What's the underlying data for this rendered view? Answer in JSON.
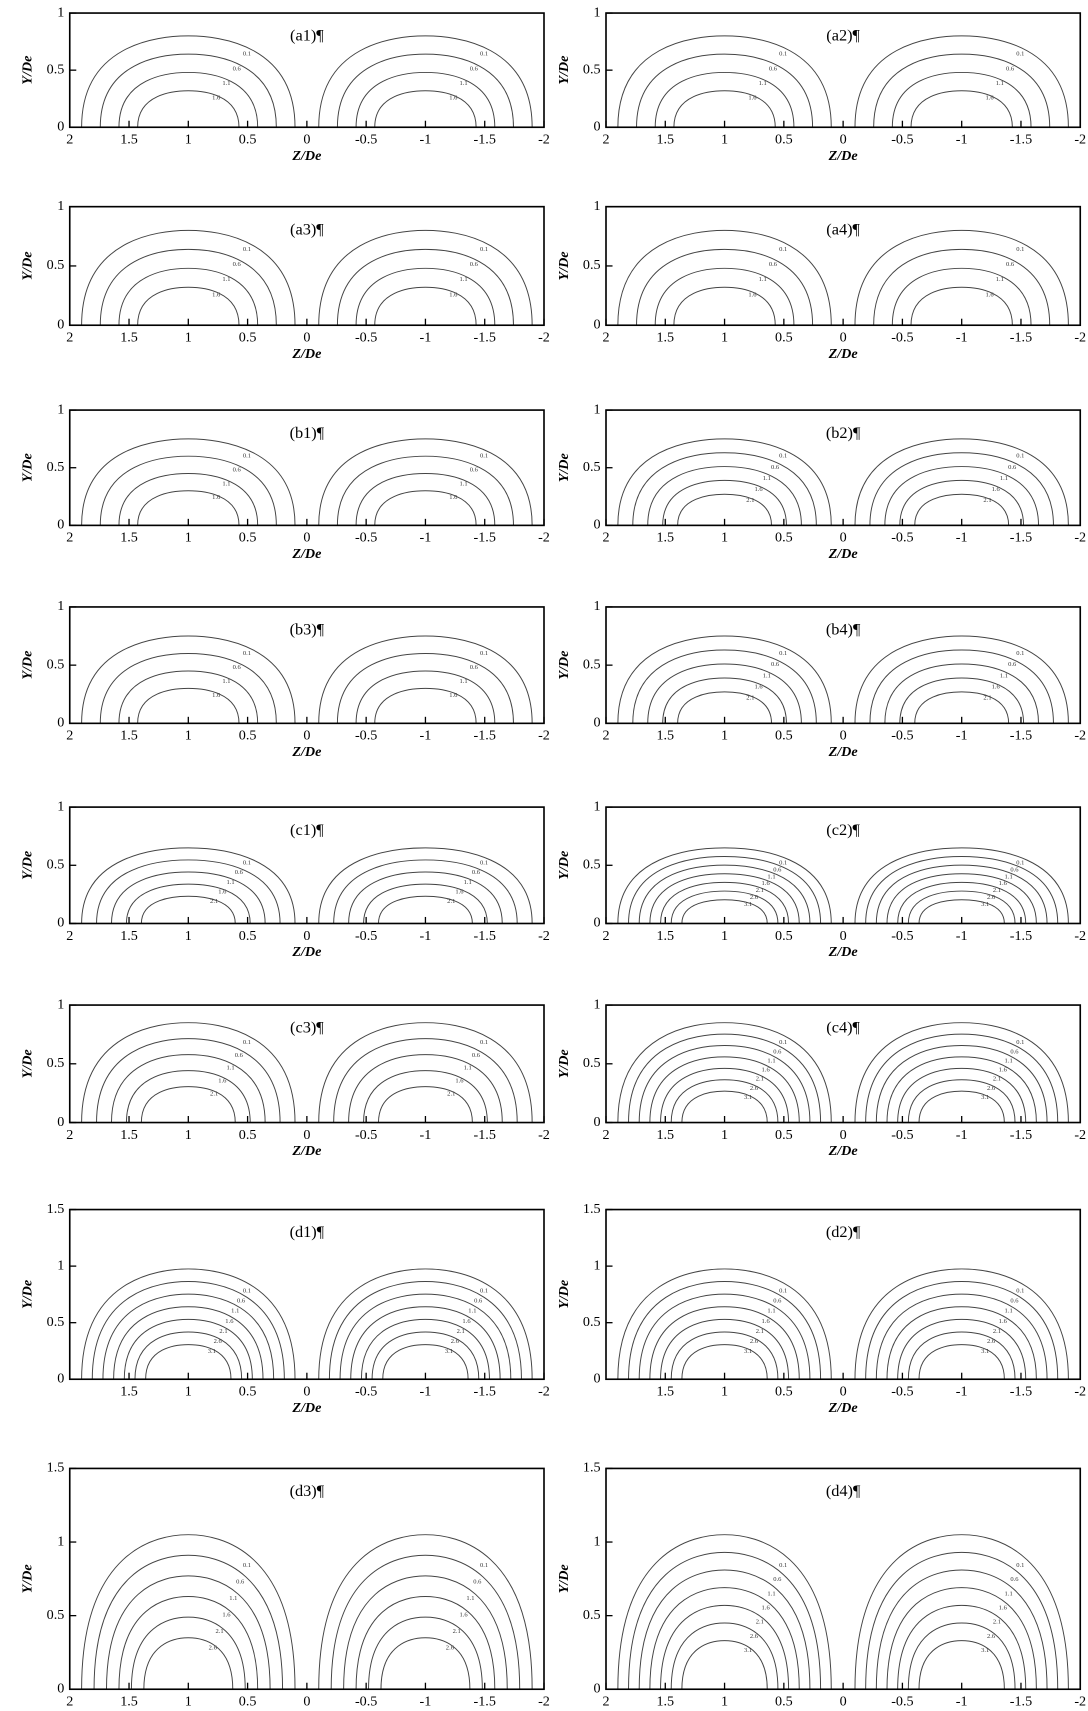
{
  "chart_data": [
    {
      "type": "contour",
      "title": "(a1)¶",
      "xlabel": "Z/De",
      "ylabel": "Y/De",
      "xlim": [
        2,
        -2
      ],
      "ylim": [
        0,
        1
      ],
      "xticks": [
        2,
        1.5,
        1,
        0.5,
        0,
        -0.5,
        -1,
        -1.5,
        -2
      ],
      "yticks": [
        0,
        0.5,
        1
      ],
      "levels": [
        0.1,
        0.6,
        1.1,
        1.6
      ]
    },
    {
      "type": "contour",
      "title": "(a2)¶",
      "xlabel": "Z/De",
      "ylabel": "Y/De",
      "xlim": [
        2,
        -2
      ],
      "ylim": [
        0,
        1
      ],
      "xticks": [
        2,
        1.5,
        1,
        0.5,
        0,
        -0.5,
        -1,
        -1.5,
        -2
      ],
      "yticks": [
        0,
        0.5,
        1
      ],
      "levels": [
        0.1,
        0.6,
        1.1,
        1.6
      ]
    },
    {
      "type": "contour",
      "title": "(a3)¶",
      "xlabel": "Z/De",
      "ylabel": "Y/De",
      "xlim": [
        2,
        -2
      ],
      "ylim": [
        0,
        1
      ],
      "xticks": [
        2,
        1.5,
        1,
        0.5,
        0,
        -0.5,
        -1,
        -1.5,
        -2
      ],
      "yticks": [
        0,
        0.5,
        1
      ],
      "levels": [
        0.1,
        0.6,
        1.1,
        1.6
      ]
    },
    {
      "type": "contour",
      "title": "(a4)¶",
      "xlabel": "Z/De",
      "ylabel": "Y/De",
      "xlim": [
        2,
        -2
      ],
      "ylim": [
        0,
        1
      ],
      "xticks": [
        2,
        1.5,
        1,
        0.5,
        0,
        -0.5,
        -1,
        -1.5,
        -2
      ],
      "yticks": [
        0,
        0.5,
        1
      ],
      "levels": [
        0.1,
        0.6,
        1.1,
        1.6
      ]
    },
    {
      "type": "contour",
      "title": "(b1)¶",
      "xlabel": "Z/De",
      "ylabel": "Y/De",
      "xlim": [
        2,
        -2
      ],
      "ylim": [
        0,
        1
      ],
      "xticks": [
        2,
        1.5,
        1,
        0.5,
        0,
        -0.5,
        -1,
        -1.5,
        -2
      ],
      "yticks": [
        0,
        0.5,
        1
      ],
      "levels": [
        0.1,
        0.6,
        1.1,
        1.6
      ]
    },
    {
      "type": "contour",
      "title": "(b2)¶",
      "xlabel": "Z/De",
      "ylabel": "Y/De",
      "xlim": [
        2,
        -2
      ],
      "ylim": [
        0,
        1
      ],
      "xticks": [
        2,
        1.5,
        1,
        0.5,
        0,
        -0.5,
        -1,
        -1.5,
        -2
      ],
      "yticks": [
        0,
        0.5,
        1
      ],
      "levels": [
        0.1,
        0.6,
        1.1,
        1.6,
        2.1
      ]
    },
    {
      "type": "contour",
      "title": "(b3)¶",
      "xlabel": "Z/De",
      "ylabel": "Y/De",
      "xlim": [
        2,
        -2
      ],
      "ylim": [
        0,
        1
      ],
      "xticks": [
        2,
        1.5,
        1,
        0.5,
        0,
        -0.5,
        -1,
        -1.5,
        -2
      ],
      "yticks": [
        0,
        0.5,
        1
      ],
      "levels": [
        0.1,
        0.6,
        1.1,
        1.6
      ]
    },
    {
      "type": "contour",
      "title": "(b4)¶",
      "xlabel": "Z/De",
      "ylabel": "Y/De",
      "xlim": [
        2,
        -2
      ],
      "ylim": [
        0,
        1
      ],
      "xticks": [
        2,
        1.5,
        1,
        0.5,
        0,
        -0.5,
        -1,
        -1.5,
        -2
      ],
      "yticks": [
        0,
        0.5,
        1
      ],
      "levels": [
        0.1,
        0.6,
        1.1,
        1.6,
        2.1
      ]
    },
    {
      "type": "contour",
      "title": "(c1)¶",
      "xlabel": "Z/De",
      "ylabel": "Y/De",
      "xlim": [
        2,
        -2
      ],
      "ylim": [
        0,
        1
      ],
      "xticks": [
        2,
        1.5,
        1,
        0.5,
        0,
        -0.5,
        -1,
        -1.5,
        -2
      ],
      "yticks": [
        0,
        0.5,
        1
      ],
      "levels": [
        0.1,
        0.6,
        1.1,
        1.6,
        2.1
      ]
    },
    {
      "type": "contour",
      "title": "(c2)¶",
      "xlabel": "Z/De",
      "ylabel": "Y/De",
      "xlim": [
        2,
        -2
      ],
      "ylim": [
        0,
        1
      ],
      "xticks": [
        2,
        1.5,
        1,
        0.5,
        0,
        -0.5,
        -1,
        -1.5,
        -2
      ],
      "yticks": [
        0,
        0.5,
        1
      ],
      "levels": [
        0.1,
        0.6,
        1.1,
        1.6,
        2.1,
        2.6,
        3.1
      ]
    },
    {
      "type": "contour",
      "title": "(c3)¶",
      "xlabel": "Z/De",
      "ylabel": "Y/De",
      "xlim": [
        2,
        -2
      ],
      "ylim": [
        0,
        1
      ],
      "xticks": [
        2,
        1.5,
        1,
        0.5,
        0,
        -0.5,
        -1,
        -1.5,
        -2
      ],
      "yticks": [
        0,
        0.5,
        1
      ],
      "levels": [
        0.1,
        0.6,
        1.1,
        1.6,
        2.1
      ]
    },
    {
      "type": "contour",
      "title": "(c4)¶",
      "xlabel": "Z/De",
      "ylabel": "Y/De",
      "xlim": [
        2,
        -2
      ],
      "ylim": [
        0,
        1
      ],
      "xticks": [
        2,
        1.5,
        1,
        0.5,
        0,
        -0.5,
        -1,
        -1.5,
        -2
      ],
      "yticks": [
        0,
        0.5,
        1
      ],
      "levels": [
        0.1,
        0.6,
        1.1,
        1.6,
        2.1,
        2.6,
        3.1
      ]
    },
    {
      "type": "contour",
      "title": "(d1)¶",
      "xlabel": "Z/De",
      "ylabel": "Y/De",
      "xlim": [
        2,
        -2
      ],
      "ylim": [
        0,
        1.5
      ],
      "xticks": [
        1.5,
        1,
        0.5,
        0,
        -0.5,
        -1,
        -1.5,
        -2
      ],
      "yticks": [
        0,
        0.5,
        1,
        1.5
      ],
      "levels": [
        0.1,
        0.6,
        1.1,
        1.6,
        2.1,
        2.6,
        3.1
      ]
    },
    {
      "type": "contour",
      "title": "(d2)¶",
      "xlabel": "Z/De",
      "ylabel": "Y/De",
      "xlim": [
        2,
        -2
      ],
      "ylim": [
        0,
        1.5
      ],
      "xticks": [
        1.5,
        1,
        0.5,
        0,
        -0.5,
        -1,
        -1.5,
        -2
      ],
      "yticks": [
        0,
        0.5,
        1,
        1.5
      ],
      "levels": [
        0.1,
        0.6,
        1.1,
        1.6,
        2.1,
        2.6,
        3.1
      ]
    },
    {
      "type": "contour",
      "title": "(d3)¶",
      "xlabel": "Z/De",
      "ylabel": "Y/De",
      "xlim": [
        2,
        -2
      ],
      "ylim": [
        0,
        1.5
      ],
      "xticks": [
        2,
        1.5,
        1,
        0.5,
        0,
        -0.5,
        -1,
        -1.5,
        -2
      ],
      "yticks": [
        0,
        0.5,
        1,
        1.5
      ],
      "levels": [
        0.1,
        0.6,
        1.1,
        1.6,
        2.1,
        2.6
      ]
    },
    {
      "type": "contour",
      "title": "(d4)¶",
      "xlabel": "Z/De",
      "ylabel": "Y/De",
      "xlim": [
        2,
        -2
      ],
      "ylim": [
        0,
        1.5
      ],
      "xticks": [
        2,
        1.5,
        1,
        0.5,
        0,
        -0.5,
        -1,
        -1.5,
        -2
      ],
      "yticks": [
        0,
        0.5,
        1,
        1.5
      ],
      "levels": [
        0.1,
        0.6,
        1.1,
        1.6,
        2.1,
        2.6,
        3.1
      ]
    }
  ]
}
